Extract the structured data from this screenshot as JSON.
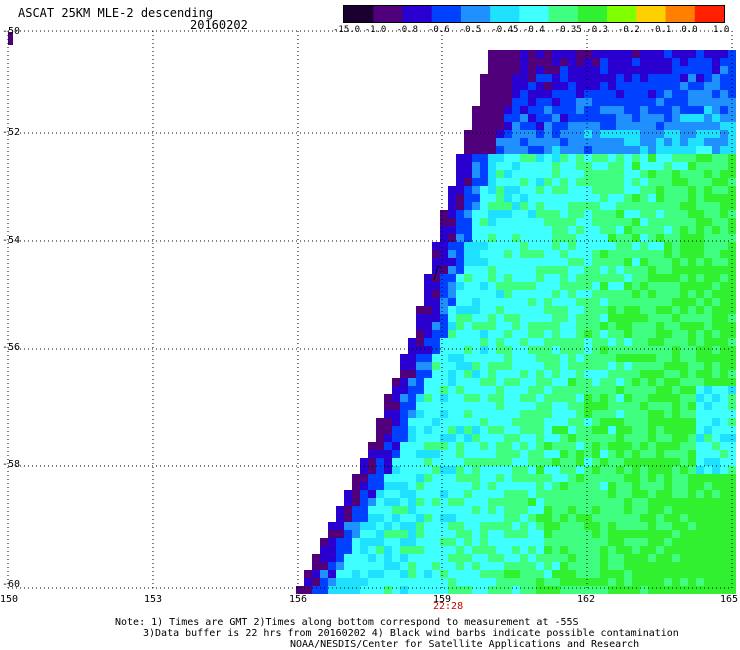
{
  "title": "ASCAT 25KM MLE-2 descending",
  "date": "20160202",
  "colorbar": {
    "labels": [
      "-15.0",
      "-1.0",
      "-0.8",
      "-0.6",
      "-0.5",
      "-0.45",
      "-0.4",
      "-0.35",
      "-0.3",
      "-0.2",
      "-0.1",
      "0.0",
      "1.0"
    ],
    "colors": [
      "#1a0030",
      "#50007a",
      "#2a00d0",
      "#0040ff",
      "#2090ff",
      "#20e0ff",
      "#40ffff",
      "#40ff80",
      "#30f030",
      "#80ff00",
      "#ffd000",
      "#ff8000",
      "#ff2000"
    ]
  },
  "lat_labels": [
    "-50",
    "-52",
    "-54",
    "-56",
    "-58",
    "-60"
  ],
  "lon_labels": [
    "150",
    "153",
    "156",
    "159",
    "162",
    "165"
  ],
  "time_label": "22:28",
  "notes": [
    "Note: 1) Times are GMT 2)Times along bottom correspond to measurement at -55S",
    "3)Data buffer is 22 hrs from 20160202 4) Black wind barbs indicate possible contamination",
    "NOAA/NESDIS/Center for Satellite Applications and Research"
  ]
}
